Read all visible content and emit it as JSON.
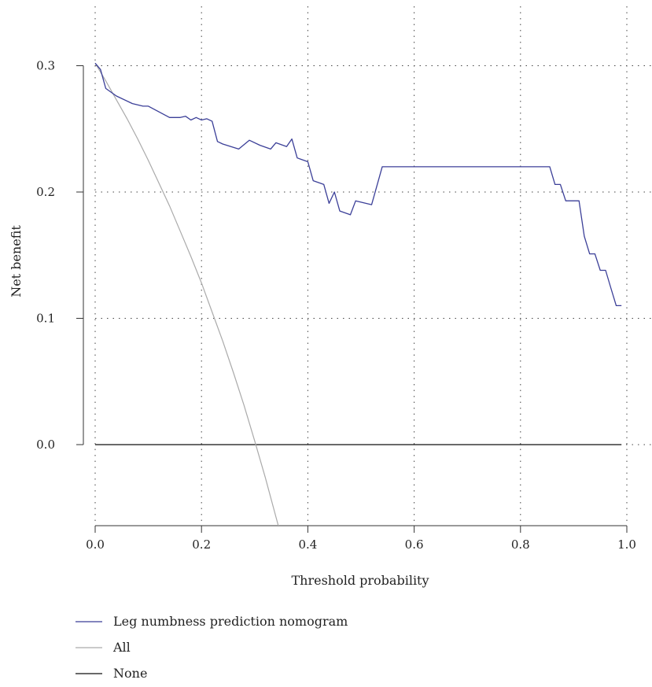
{
  "chart_data": {
    "type": "line",
    "title": "",
    "xlabel": "Threshold probability",
    "ylabel": "Net benefit",
    "xlim": [
      0.0,
      1.0
    ],
    "ylim": [
      -0.065,
      0.31
    ],
    "x_ticks": [
      "0.0",
      "0.2",
      "0.4",
      "0.6",
      "0.8",
      "1.0"
    ],
    "y_ticks": [
      "0.0",
      "0.1",
      "0.2",
      "0.3"
    ],
    "grid": "dotted",
    "legend_position": "bottom-left",
    "series": [
      {
        "name": "Leg numbness prediction nomogram",
        "color": "#3b3f98",
        "x": [
          0.0,
          0.01,
          0.02,
          0.04,
          0.07,
          0.09,
          0.1,
          0.14,
          0.16,
          0.17,
          0.18,
          0.19,
          0.2,
          0.21,
          0.22,
          0.23,
          0.24,
          0.27,
          0.29,
          0.31,
          0.33,
          0.34,
          0.36,
          0.37,
          0.38,
          0.4,
          0.41,
          0.43,
          0.44,
          0.45,
          0.46,
          0.48,
          0.49,
          0.52,
          0.54,
          0.6,
          0.7,
          0.8,
          0.855,
          0.865,
          0.875,
          0.885,
          0.91,
          0.92,
          0.93,
          0.94,
          0.95,
          0.96,
          0.97,
          0.98,
          0.99
        ],
        "y": [
          0.302,
          0.297,
          0.282,
          0.276,
          0.27,
          0.268,
          0.268,
          0.259,
          0.259,
          0.26,
          0.257,
          0.259,
          0.257,
          0.258,
          0.256,
          0.24,
          0.238,
          0.234,
          0.241,
          0.237,
          0.234,
          0.239,
          0.236,
          0.242,
          0.227,
          0.224,
          0.209,
          0.206,
          0.191,
          0.2,
          0.185,
          0.182,
          0.193,
          0.19,
          0.22,
          0.22,
          0.22,
          0.22,
          0.22,
          0.206,
          0.206,
          0.193,
          0.193,
          0.165,
          0.151,
          0.151,
          0.138,
          0.138,
          0.124,
          0.11,
          0.11
        ]
      },
      {
        "name": "All",
        "color": "#aaaaaa",
        "x": [
          0.0,
          0.02,
          0.04,
          0.06,
          0.08,
          0.1,
          0.12,
          0.14,
          0.16,
          0.18,
          0.2,
          0.22,
          0.24,
          0.26,
          0.28,
          0.3,
          0.32,
          0.345
        ],
        "y": [
          0.302,
          0.288,
          0.273,
          0.258,
          0.242,
          0.225,
          0.207,
          0.189,
          0.169,
          0.149,
          0.128,
          0.105,
          0.082,
          0.057,
          0.031,
          0.003,
          -0.026,
          -0.065
        ]
      },
      {
        "name": "None",
        "color": "#111111",
        "x": [
          0.0,
          0.99
        ],
        "y": [
          0.0,
          0.0
        ]
      }
    ]
  }
}
